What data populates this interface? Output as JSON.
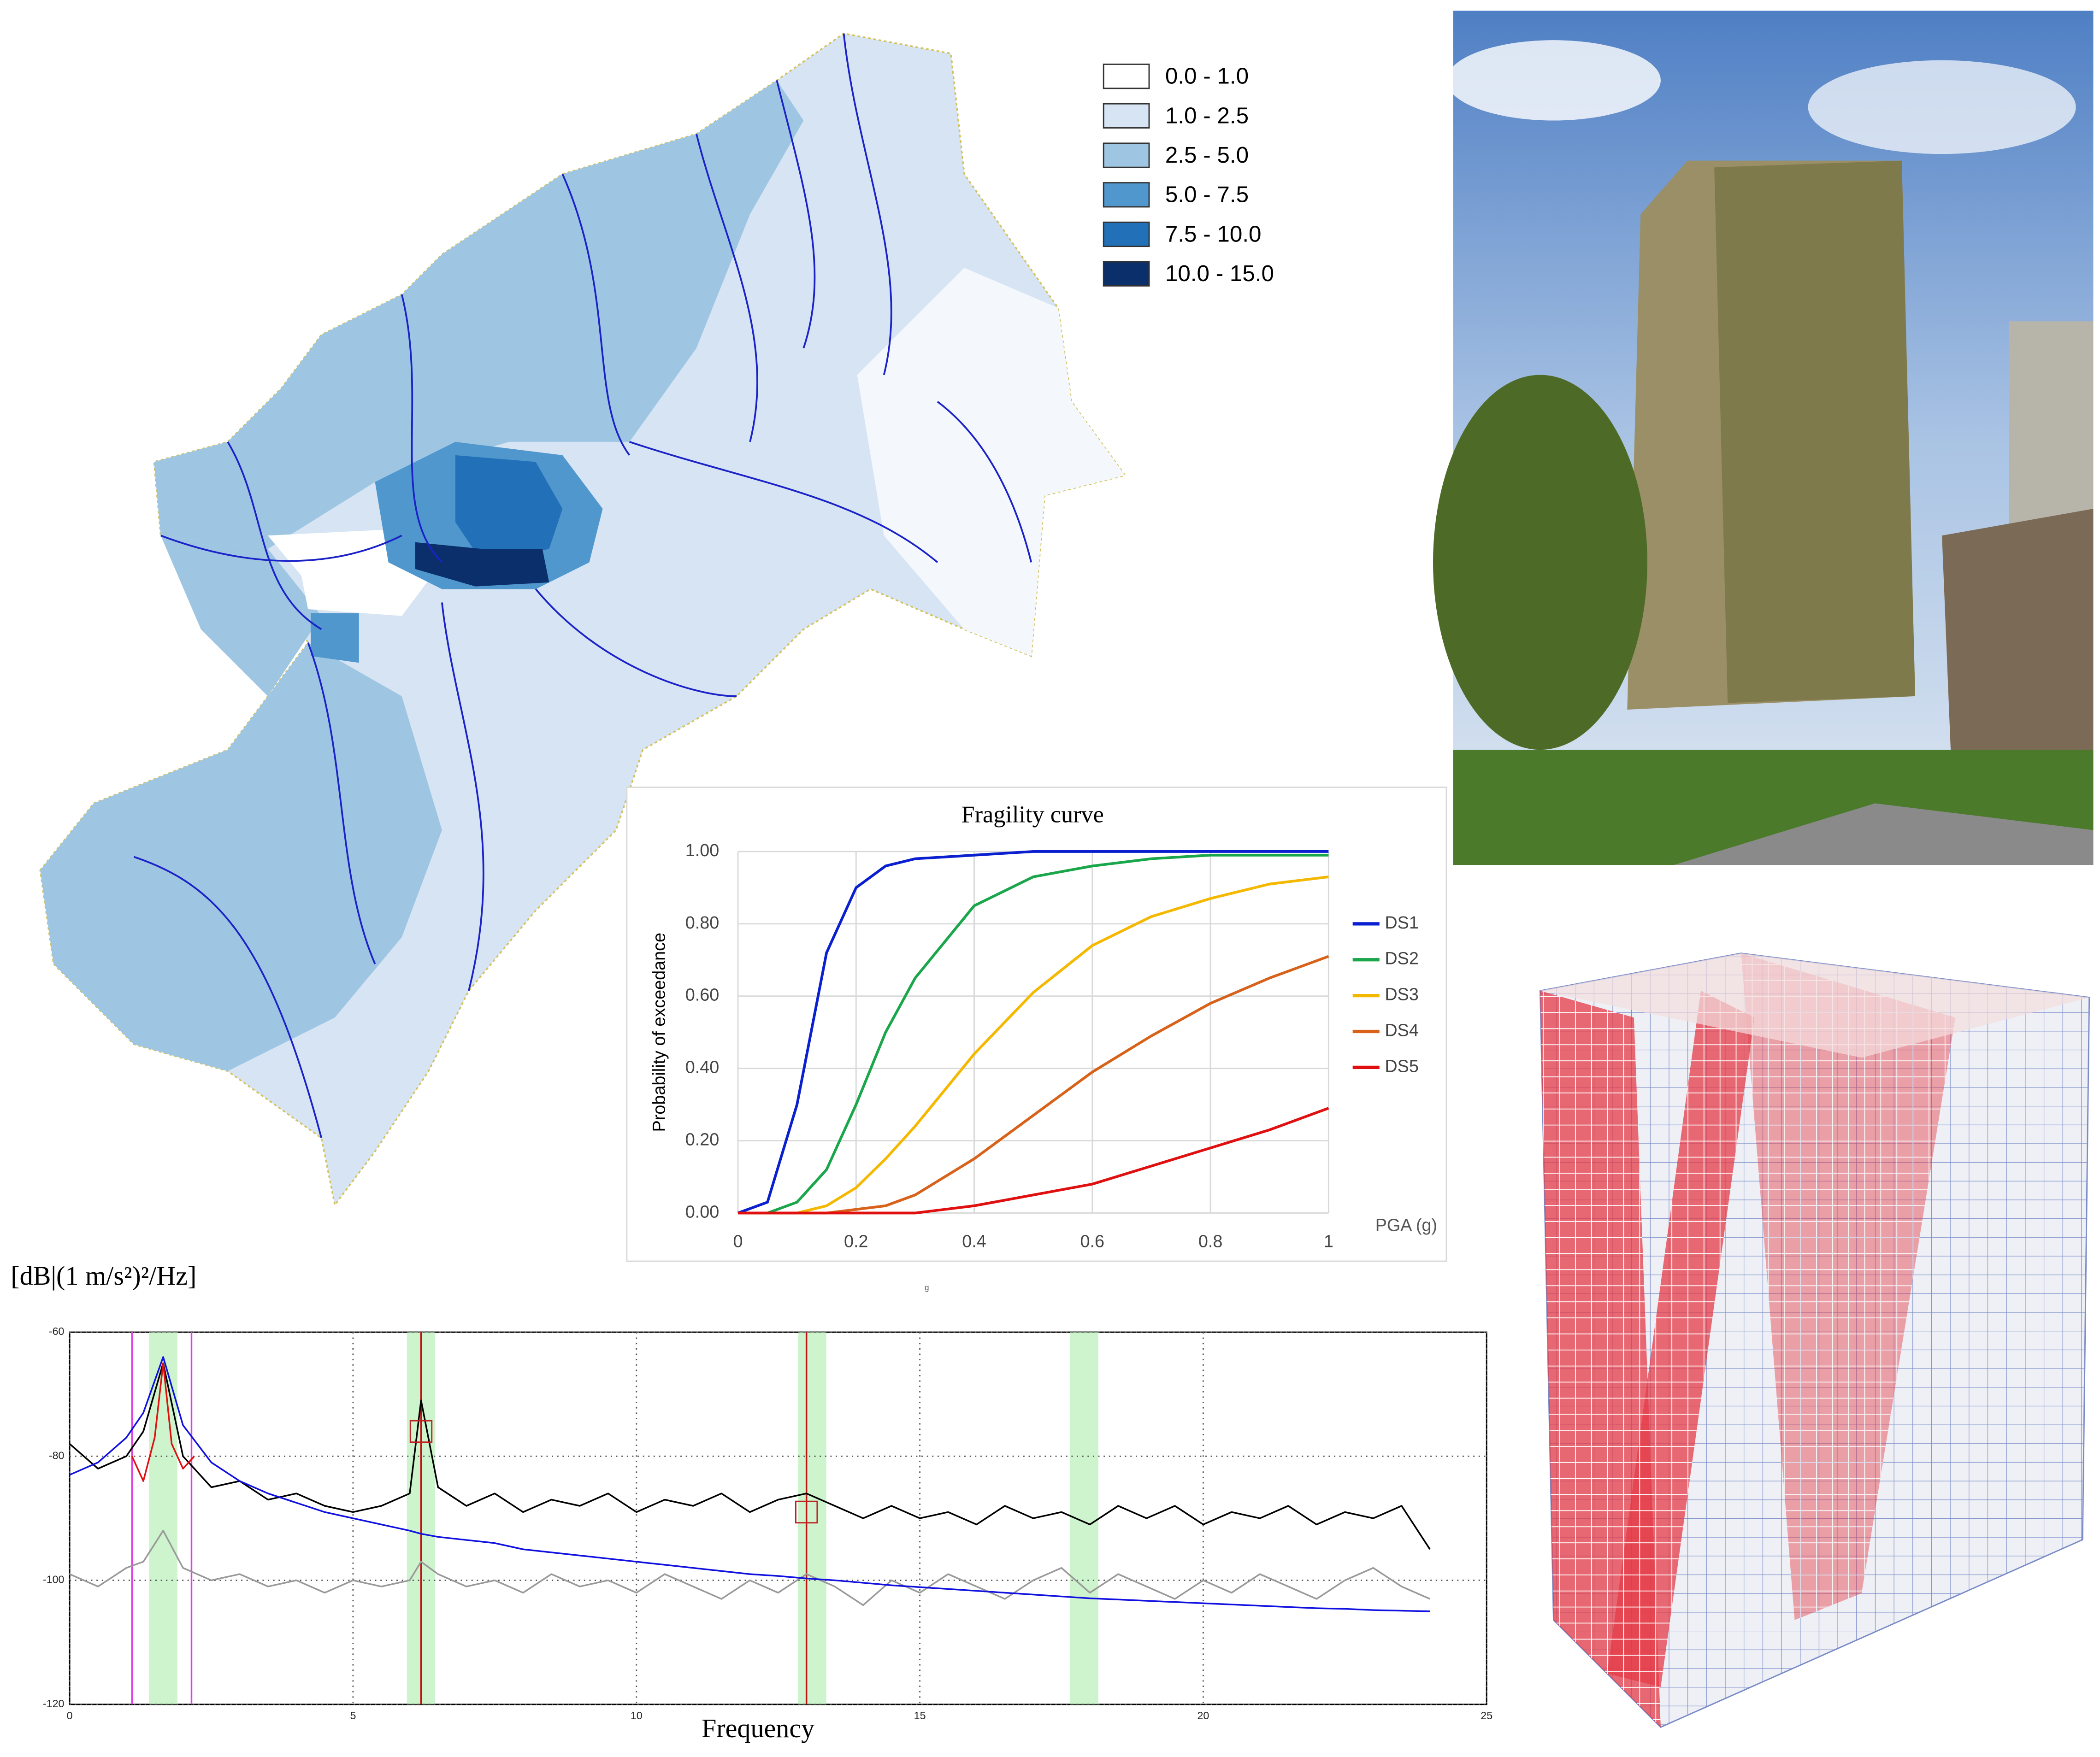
{
  "map": {
    "legend": [
      {
        "label": "0.0 - 1.0",
        "color": "#ffffff"
      },
      {
        "label": "1.0 - 2.5",
        "color": "#d6e4f3"
      },
      {
        "label": "2.5 - 5.0",
        "color": "#9ec6e2"
      },
      {
        "label": "5.0 - 7.5",
        "color": "#4f97cd"
      },
      {
        "label": "7.5 - 10.0",
        "color": "#2271b8"
      },
      {
        "label": "10.0 - 15.0",
        "color": "#0a2f6b"
      }
    ]
  },
  "chart_data": [
    {
      "type": "line",
      "title": "Fragility curve",
      "y_label": "Probability of exceedance",
      "x_label": "PGA (g)",
      "annotation": "g",
      "x": [
        0,
        0.05,
        0.1,
        0.15,
        0.2,
        0.25,
        0.3,
        0.4,
        0.5,
        0.6,
        0.7,
        0.8,
        0.9,
        1
      ],
      "series": [
        {
          "name": "DS1",
          "color": "#0a1fd0",
          "values": [
            0,
            0.03,
            0.3,
            0.72,
            0.9,
            0.96,
            0.98,
            0.99,
            1,
            1,
            1,
            1,
            1,
            1
          ]
        },
        {
          "name": "DS2",
          "color": "#1aa64a",
          "values": [
            0,
            0,
            0.03,
            0.12,
            0.3,
            0.5,
            0.65,
            0.85,
            0.93,
            0.96,
            0.98,
            0.99,
            0.99,
            0.99
          ]
        },
        {
          "name": "DS3",
          "color": "#f5b800",
          "values": [
            0,
            0,
            0,
            0.02,
            0.07,
            0.15,
            0.24,
            0.44,
            0.61,
            0.74,
            0.82,
            0.87,
            0.91,
            0.93
          ]
        },
        {
          "name": "DS4",
          "color": "#d8621a",
          "values": [
            0,
            0,
            0,
            0,
            0.01,
            0.02,
            0.05,
            0.15,
            0.27,
            0.39,
            0.49,
            0.58,
            0.65,
            0.71
          ]
        },
        {
          "name": "DS5",
          "color": "#e01010",
          "values": [
            0,
            0,
            0,
            0,
            0,
            0,
            0,
            0.02,
            0.05,
            0.08,
            0.13,
            0.18,
            0.23,
            0.29
          ]
        }
      ],
      "xlim": [
        0,
        1
      ],
      "xticks": [
        0,
        0.2,
        0.4,
        0.6,
        0.8,
        1
      ],
      "ylim": [
        0,
        1
      ],
      "yticks": [
        {
          "value": 0,
          "label": "0.00"
        },
        {
          "value": 0.2,
          "label": "0.20"
        },
        {
          "value": 0.4,
          "label": "0.40"
        },
        {
          "value": 0.6,
          "label": "0.60"
        },
        {
          "value": 0.8,
          "label": "0.80"
        },
        {
          "value": 1,
          "label": "1.00"
        }
      ],
      "grid": true,
      "legend": "right"
    },
    {
      "type": "line",
      "y_label": "[dB|(1 m/s²)²/Hz]",
      "x_label": "Frequency",
      "x": [
        0,
        0.5,
        1,
        1.3,
        1.65,
        2,
        2.5,
        3,
        3.5,
        4,
        4.5,
        5,
        5.5,
        6,
        6.2,
        6.5,
        7,
        7.5,
        8,
        8.5,
        9,
        9.5,
        10,
        10.5,
        11,
        11.5,
        12,
        12.5,
        13,
        13.5,
        14,
        14.5,
        15,
        15.5,
        16,
        16.5,
        17,
        17.5,
        18,
        18.5,
        19,
        19.5,
        20,
        20.5,
        21,
        21.5,
        22,
        22.5,
        23,
        23.5,
        24
      ],
      "series": [
        {
          "color": "#999999",
          "values": [
            -99,
            -101,
            -98,
            -97,
            -92,
            -98,
            -100,
            -99,
            -101,
            -100,
            -102,
            -100,
            -101,
            -100,
            -97,
            -99,
            -101,
            -100,
            -102,
            -99,
            -101,
            -100,
            -102,
            -99,
            -101,
            -103,
            -100,
            -102,
            -99,
            -101,
            -104,
            -100,
            -102,
            -99,
            -101,
            -103,
            -100,
            -98,
            -102,
            -99,
            -101,
            -103,
            -100,
            -102,
            -99,
            -101,
            -103,
            -100,
            -98,
            -101,
            -103
          ]
        },
        {
          "color": "#000000",
          "values": [
            -78,
            -82,
            -80,
            -76,
            -65,
            -80,
            -85,
            -84,
            -87,
            -86,
            -88,
            -89,
            -88,
            -86,
            -71,
            -85,
            -88,
            -86,
            -89,
            -87,
            -88,
            -86,
            -89,
            -87,
            -88,
            -86,
            -89,
            -87,
            -86,
            -88,
            -90,
            -88,
            -90,
            -89,
            -91,
            -88,
            -90,
            -89,
            -91,
            -88,
            -90,
            -88,
            -91,
            -89,
            -90,
            -88,
            -91,
            -89,
            -90,
            -88,
            -95
          ]
        },
        {
          "color": "#1010e0",
          "values": [
            -83,
            -81,
            -77,
            -73,
            -64,
            -75,
            -81,
            -84,
            -86,
            -87.5,
            -89,
            -90,
            -91,
            -92,
            -92.5,
            -93,
            -93.5,
            -94,
            -95,
            -95.5,
            -96,
            -96.5,
            -97,
            -97.5,
            -98,
            -98.5,
            -99,
            -99.3,
            -99.7,
            -100,
            -100.4,
            -100.8,
            -101.1,
            -101.4,
            -101.7,
            -102,
            -102.3,
            -102.6,
            -102.9,
            -103.1,
            -103.3,
            -103.5,
            -103.7,
            -103.9,
            -104.1,
            -104.3,
            -104.5,
            -104.6,
            -104.8,
            -104.9,
            -105
          ]
        },
        {
          "color": "#e01010",
          "x": [
            1.1,
            1.3,
            1.5,
            1.65,
            1.8,
            2,
            2.2
          ],
          "values": [
            -80,
            -84,
            -77,
            -65,
            -78,
            -82,
            -80
          ]
        }
      ],
      "markers": [
        {
          "x": 1.1,
          "color": "#e040e0"
        },
        {
          "x": 2.15,
          "color": "#e040e0"
        },
        {
          "x": 6.2,
          "color": "#c01010"
        },
        {
          "x": 13.0,
          "color": "#c01010"
        }
      ],
      "bands": [
        1.65,
        6.2,
        13.1,
        17.9
      ],
      "band_color": "#b8f0b8",
      "picks": [
        {
          "x": 6.2,
          "y": -76
        },
        {
          "x": 13.0,
          "y": -89
        }
      ],
      "xlim": [
        0,
        25
      ],
      "xticks": [
        0,
        5,
        10,
        15,
        20,
        25
      ],
      "ylim": [
        -120,
        -60
      ],
      "yticks": [
        -60,
        -80,
        -100,
        -120
      ],
      "grid": true
    }
  ]
}
